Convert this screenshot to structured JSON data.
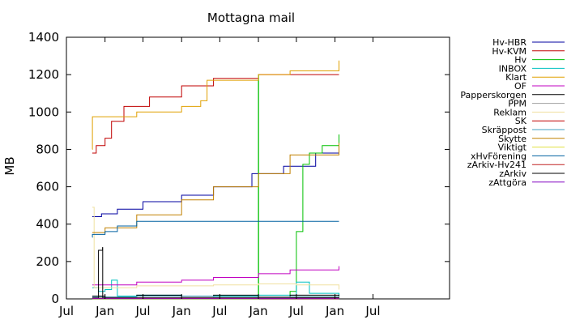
{
  "chart_data": {
    "type": "line",
    "title": "Mottagna mail",
    "xlabel": "",
    "ylabel": "MB",
    "ylim": [
      0,
      1400
    ],
    "yticks": [
      "0",
      "200",
      "400",
      "600",
      "800",
      "1000",
      "1200",
      "1400"
    ],
    "xlim": [
      "2010-07-01",
      "2015-07-01"
    ],
    "xticks": [
      {
        "date": "2010-07-01",
        "label": "Jul"
      },
      {
        "date": "2011-01-01",
        "label": "Jan"
      },
      {
        "date": "2011-07-01",
        "label": "Jul"
      },
      {
        "date": "2012-01-01",
        "label": "Jan"
      },
      {
        "date": "2012-07-01",
        "label": "Jul"
      },
      {
        "date": "2013-01-01",
        "label": "Jan"
      },
      {
        "date": "2013-07-01",
        "label": "Jul"
      },
      {
        "date": "2014-01-01",
        "label": "Jan"
      },
      {
        "date": "2014-07-01",
        "label": "Jul"
      }
    ],
    "grid": false,
    "legend": "right",
    "series": [
      {
        "name": "Hv-HBR",
        "color": "#0000a0",
        "x": [
          "2010-11-01",
          "2010-12-15",
          "2011-03-01",
          "2011-07-01",
          "2012-01-01",
          "2012-06-01",
          "2012-12-01",
          "2013-05-01",
          "2013-10-01",
          "2014-01-20"
        ],
        "y": [
          440,
          455,
          480,
          520,
          555,
          600,
          670,
          710,
          780,
          875
        ]
      },
      {
        "name": "Hv-KVM",
        "color": "#c00000",
        "x": [
          "2010-11-01",
          "2010-11-20",
          "2011-01-01",
          "2011-02-01",
          "2011-04-01",
          "2011-08-01",
          "2012-01-01",
          "2012-06-01",
          "2013-01-01",
          "2013-06-01",
          "2014-01-20"
        ],
        "y": [
          780,
          820,
          860,
          950,
          1030,
          1080,
          1140,
          1180,
          1200,
          1200,
          1200
        ]
      },
      {
        "name": "Hv",
        "color": "#00c000",
        "x": [
          "2010-11-01",
          "2012-12-31",
          "2013-01-01",
          "2013-01-02",
          "2013-03-01",
          "2013-06-01",
          "2013-07-01",
          "2013-08-01",
          "2013-09-01",
          "2013-11-01",
          "2014-01-20"
        ],
        "y": [
          0,
          0,
          1200,
          5,
          10,
          40,
          360,
          720,
          780,
          820,
          880
        ]
      },
      {
        "name": "INBOX",
        "color": "#00c0c0",
        "x": [
          "2010-11-01",
          "2010-12-01",
          "2011-01-01",
          "2011-02-01",
          "2011-03-01",
          "2011-06-01",
          "2012-01-01",
          "2013-01-01",
          "2013-07-01",
          "2013-09-01",
          "2014-01-20"
        ],
        "y": [
          60,
          40,
          50,
          100,
          15,
          20,
          15,
          20,
          90,
          30,
          20
        ]
      },
      {
        "name": "Klart",
        "color": "#e0a000",
        "x": [
          "2010-11-01",
          "2010-11-02",
          "2011-06-01",
          "2012-01-01",
          "2012-04-01",
          "2012-05-01",
          "2013-01-01",
          "2013-06-01",
          "2014-01-20"
        ],
        "y": [
          800,
          975,
          1000,
          1030,
          1060,
          1170,
          1200,
          1220,
          1275
        ]
      },
      {
        "name": "OF",
        "color": "#c000c0",
        "x": [
          "2010-11-01",
          "2011-06-01",
          "2012-01-01",
          "2012-06-01",
          "2013-01-01",
          "2013-06-01",
          "2014-01-20"
        ],
        "y": [
          75,
          90,
          100,
          115,
          135,
          155,
          175
        ]
      },
      {
        "name": "Papperskorgen",
        "color": "#000000",
        "x": [
          "2010-11-01",
          "2011-01-01",
          "2011-06-01",
          "2012-01-01",
          "2012-06-01",
          "2013-01-01",
          "2013-06-01",
          "2014-01-20"
        ],
        "y": [
          15,
          10,
          20,
          15,
          20,
          10,
          20,
          15
        ]
      },
      {
        "name": "PPM",
        "color": "#a0a0a0",
        "x": [
          "2010-11-01",
          "2011-06-01",
          "2012-01-01",
          "2013-01-01",
          "2014-01-20"
        ],
        "y": [
          5,
          8,
          10,
          12,
          15
        ]
      },
      {
        "name": "Reklam",
        "color": "#f0e0a0",
        "x": [
          "2010-11-01",
          "2010-11-10",
          "2011-06-01",
          "2012-01-01",
          "2012-06-01",
          "2013-01-01",
          "2013-07-01",
          "2014-01-20"
        ],
        "y": [
          490,
          60,
          70,
          70,
          75,
          80,
          75,
          50
        ]
      },
      {
        "name": "SK",
        "color": "#c00000",
        "x": [
          "2010-11-01",
          "2012-01-01",
          "2013-01-01",
          "2014-01-20"
        ],
        "y": [
          2,
          2,
          3,
          3
        ]
      },
      {
        "name": "Skräppost",
        "color": "#40a0c0",
        "x": [
          "2010-11-01",
          "2011-06-01",
          "2012-06-01",
          "2013-06-01",
          "2014-01-20"
        ],
        "y": [
          10,
          15,
          8,
          12,
          10
        ]
      },
      {
        "name": "Skytte",
        "color": "#c08000",
        "x": [
          "2010-11-01",
          "2011-01-01",
          "2011-06-01",
          "2012-01-01",
          "2012-06-01",
          "2013-01-01",
          "2013-06-01",
          "2014-01-20"
        ],
        "y": [
          355,
          380,
          450,
          530,
          600,
          670,
          770,
          835
        ]
      },
      {
        "name": "Viktigt",
        "color": "#e0e040",
        "x": [
          "2010-11-01",
          "2011-06-01",
          "2012-06-01",
          "2013-06-01",
          "2014-01-20"
        ],
        "y": [
          5,
          6,
          6,
          7,
          8
        ]
      },
      {
        "name": "xHvFörening",
        "color": "#0060a0",
        "x": [
          "2010-11-01",
          "2010-11-02",
          "2011-01-01",
          "2011-03-01",
          "2011-06-01",
          "2012-01-01",
          "2013-01-01",
          "2014-01-20"
        ],
        "y": [
          330,
          345,
          360,
          390,
          415,
          415,
          415,
          415
        ]
      },
      {
        "name": "zArkiv-Hv241",
        "color": "#c02020",
        "x": [
          "2010-11-01",
          "2012-01-01",
          "2014-01-20"
        ],
        "y": [
          1,
          1,
          1
        ]
      },
      {
        "name": "zArkiv",
        "color": "#000000",
        "x": [
          "2010-11-01",
          "2010-12-01",
          "2010-12-02",
          "2010-12-20",
          "2010-12-21",
          "2011-06-01",
          "2012-06-01",
          "2013-06-01",
          "2014-01-20"
        ],
        "y": [
          5,
          260,
          260,
          275,
          5,
          5,
          5,
          6,
          8
        ]
      },
      {
        "name": "zAttgöra",
        "color": "#8000c0",
        "x": [
          "2010-11-01",
          "2012-01-01",
          "2013-01-01",
          "2014-01-20"
        ],
        "y": [
          3,
          3,
          3,
          3
        ]
      }
    ]
  }
}
